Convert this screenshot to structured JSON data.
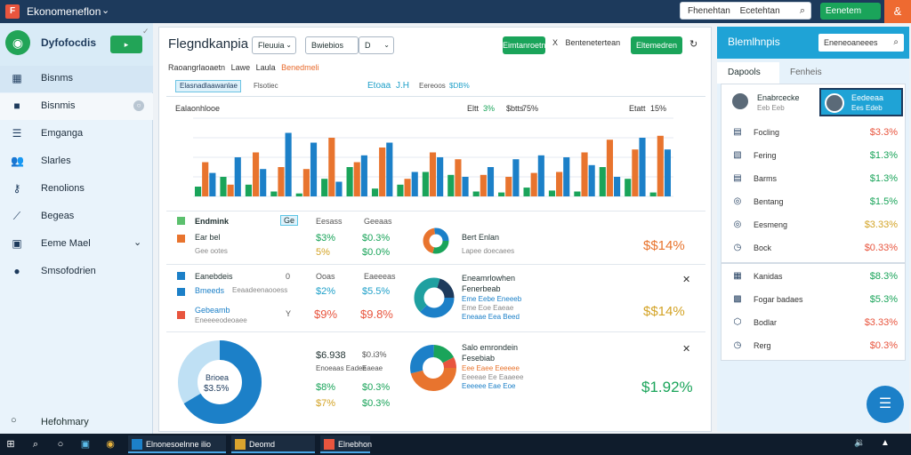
{
  "titlebar": {
    "app_icon": "F",
    "title": "Ekonomeneflon",
    "search_text": "Fhenehtan",
    "search_tail": "Ecetehtan",
    "green_button": "Eenetem",
    "orange_icon": "&"
  },
  "sidebar": {
    "brand": "Dyfofocdis",
    "header_button": "▸",
    "items": [
      {
        "label": "Bisnms",
        "icon": "grid-icon"
      },
      {
        "label": "Bisnmis",
        "icon": "briefcase-icon",
        "badge": "○"
      },
      {
        "label": "Emganga",
        "icon": "document-icon"
      },
      {
        "label": "Slarles",
        "icon": "users-icon"
      },
      {
        "label": "Renolions",
        "icon": "key-icon"
      },
      {
        "label": "Begeas",
        "icon": "wrench-icon"
      },
      {
        "label": "Eeme Mael",
        "icon": "calendar-icon"
      },
      {
        "label": "Smsofodrien",
        "icon": "circle-icon"
      }
    ],
    "footer": "Hefohmary"
  },
  "main": {
    "title": "Flegndkanpia",
    "select1": "Fleuuia",
    "select2": "Bwiebios",
    "select3": "D",
    "btn1": "Eimtanroetn",
    "btn_x": "X",
    "btn_x_label": "Bentenetertean",
    "btn2": "Eltemedren",
    "breadcrumb": [
      "Raoangrlaoaetn",
      "Lawe",
      "Laula",
      "Benedmeli"
    ],
    "filters": {
      "tab": "Elasnadlaawanlae",
      "t2": "Flsotiec",
      "b1": "Etoaa",
      "b2": "J.H",
      "t3": "Eereoos",
      "t4": "$DB%"
    },
    "chart": {
      "title": "Ealaonhlooe",
      "legend1": "Eltt",
      "legend1_val": "3%",
      "legend2": "$btts",
      "legend2_val": "75%",
      "legend3": "Etatt",
      "legend3_val": "15%"
    },
    "section1": {
      "rows": [
        {
          "label": "Endmink",
          "tag": "Ge",
          "c1": "Eesass",
          "c2": "Geeaas"
        },
        {
          "label": "Ear bel",
          "sub": "Gee ootes",
          "c1": "$3%",
          "c2": "$0.3%"
        },
        {
          "label": "",
          "sub": "",
          "c1": "5%",
          "c2": "$0.0%"
        }
      ],
      "donut_title": "Bert Enlan",
      "donut_sub": "Lapee doecaees",
      "big_value": "$$14%"
    },
    "section2": {
      "rows": [
        {
          "label": "Eanebdeis",
          "c0": "0",
          "c1": "Ooas",
          "c2": "Eaeeeas"
        },
        {
          "label": "Bmeeds",
          "sub": "Eeaadeenaooess",
          "c1": "$2%",
          "c2": "$5.5%"
        },
        {
          "label": "Gebeamb",
          "sub": "Eneeeeodeoaee",
          "c0": "Y",
          "c1": "$9%",
          "c2": "$9.8%"
        }
      ],
      "donut_title": "Eneamrlowhen",
      "donut_sub": "Fenerbeab",
      "d1": "Eme Eebe Eneeeb",
      "d2": "Eme Eoe Eaeae",
      "d3": "Eneaae Eea Beed",
      "big_value": "$$14%"
    },
    "section3": {
      "donut_label": "Brioea",
      "donut_value": "$3.5%",
      "head1": "$6.938",
      "head2": "$0.i3%",
      "sub1": "Enoeaas Eadee",
      "sub2": "Eaeae",
      "r1c1": "$8%",
      "r1c2": "$0.3%",
      "r2c1": "$7%",
      "r2c2": "$0.3%",
      "donut_title": "Salo emrondein",
      "donut_sub": "Fesebiab",
      "l1": "Eee Eaee Eeeeee",
      "l2": "Eeeeae Ee Eaaeee",
      "l3": "Eeeeee Eae Eoe",
      "big_value": "$1.92%"
    }
  },
  "right_panel": {
    "title": "Blemlhnpis",
    "search_placeholder": "Eneneoaneees",
    "tabs": [
      "Dapools",
      "Fenheis"
    ],
    "contacts": [
      {
        "name": "Enabrcecke",
        "sub": "Eeb Eeb"
      },
      {
        "name": "Eedeeaa",
        "sub": "Ees Edeb"
      }
    ],
    "list": [
      {
        "icon": "document-icon",
        "label": "Focling",
        "value": "$3.3%",
        "color": "#e8553e"
      },
      {
        "icon": "image-icon",
        "label": "Fering",
        "value": "$1.3%",
        "color": "#1aa45a"
      },
      {
        "icon": "document-icon",
        "label": "Barms",
        "value": "$1.3%",
        "color": "#1aa45a"
      },
      {
        "icon": "target-icon",
        "label": "Bentang",
        "value": "$1.5%",
        "color": "#1aa45a"
      },
      {
        "icon": "target-icon",
        "label": "Eesmeng",
        "value": "$3.33%",
        "color": "#d3a326"
      },
      {
        "icon": "clock-icon",
        "label": "Bock",
        "value": "$0.33%",
        "color": "#e8553e"
      }
    ],
    "list2": [
      {
        "icon": "grid-icon",
        "label": "Kanidas",
        "value": "$8.3%",
        "color": "#1aa45a"
      },
      {
        "icon": "briefcase-icon",
        "label": "Fogar badaes",
        "value": "$5.3%",
        "color": "#1aa45a"
      },
      {
        "icon": "shield-icon",
        "label": "Bodlar",
        "value": "$3.33%",
        "color": "#e8553e"
      },
      {
        "icon": "clock-icon",
        "label": "Rerg",
        "value": "$0.3%",
        "color": "#e8553e"
      }
    ]
  },
  "taskbar": {
    "items": [
      "Elnonesoelnne ilio Endnrahein",
      "Deomd dardtomeas",
      "Elnebhon"
    ]
  },
  "colors": {
    "accent": "#1fa3d6",
    "green": "#1aa45a",
    "orange": "#e8553e"
  },
  "chart_data": {
    "type": "bar",
    "title": "Ealaonhlooe",
    "series": [
      {
        "name": "Eltt",
        "values": [
          10,
          20,
          12,
          5,
          3,
          18,
          30,
          8,
          12,
          25,
          22,
          5,
          4,
          9,
          6,
          5,
          30,
          18,
          4
        ]
      },
      {
        "name": "$btts",
        "values": [
          35,
          12,
          45,
          30,
          28,
          60,
          35,
          50,
          18,
          45,
          38,
          22,
          20,
          24,
          25,
          45,
          58,
          48,
          62
        ]
      },
      {
        "name": "Etatt",
        "values": [
          24,
          40,
          28,
          65,
          55,
          15,
          42,
          55,
          25,
          40,
          20,
          30,
          38,
          42,
          40,
          32,
          20,
          60,
          48
        ]
      }
    ],
    "ylim": [
      0,
      80
    ]
  }
}
